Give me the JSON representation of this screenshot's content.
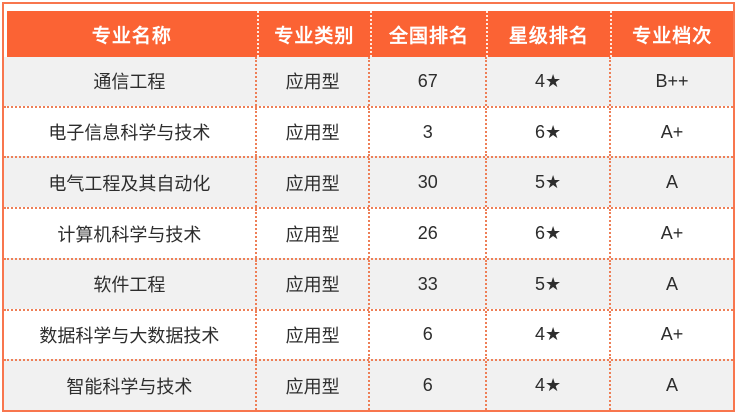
{
  "chart_data": {
    "type": "table",
    "columns": [
      "专业名称",
      "专业类别",
      "全国排名",
      "星级排名",
      "专业档次"
    ],
    "rows": [
      [
        "通信工程",
        "应用型",
        "67",
        "4★",
        "B++"
      ],
      [
        "电子信息科学与技术",
        "应用型",
        "3",
        "6★",
        "A+"
      ],
      [
        "电气工程及其自动化",
        "应用型",
        "30",
        "5★",
        "A"
      ],
      [
        "计算机科学与技术",
        "应用型",
        "26",
        "6★",
        "A+"
      ],
      [
        "软件工程",
        "应用型",
        "33",
        "5★",
        "A"
      ],
      [
        "数据科学与大数据技术",
        "应用型",
        "6",
        "4★",
        "A+"
      ],
      [
        "智能科学与技术",
        "应用型",
        "6",
        "4★",
        "A"
      ]
    ],
    "layout": {
      "legend": "none",
      "grid": "dotted-separators",
      "row_striping": "odd-rows-gray"
    }
  },
  "colors": {
    "header_bg": "#fb6334",
    "outer_border": "#f8764e",
    "dotted_divider": "#ee7f57",
    "header_divider": "#ffffff",
    "row_alt_bg": "#f1f1f1",
    "row_bg": "#ffffff",
    "header_text": "#ffffff",
    "body_text": "#2d2d2d"
  }
}
